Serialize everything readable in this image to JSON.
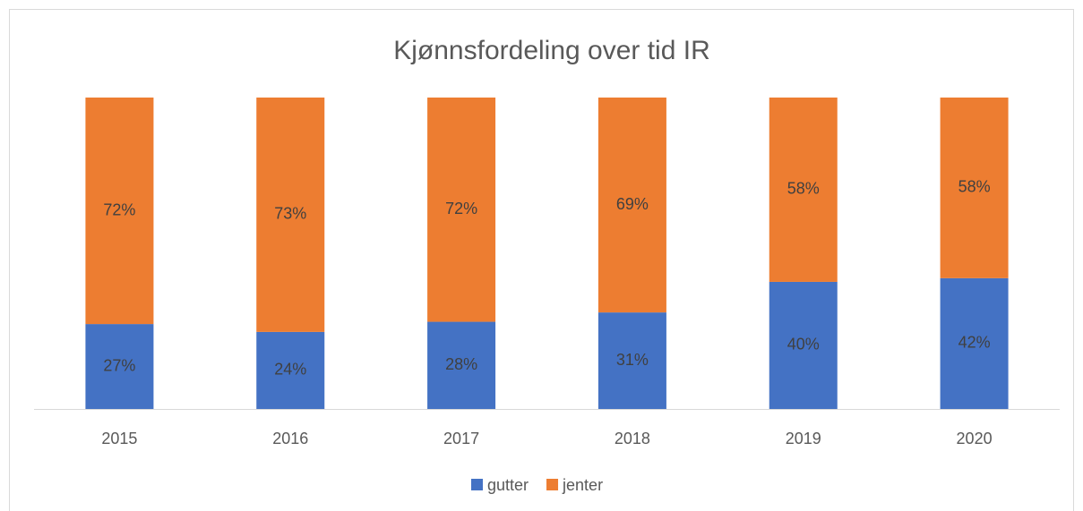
{
  "chart_data": {
    "type": "bar",
    "stacking": "percent",
    "title": "Kjønnsfordeling over tid IR",
    "categories": [
      "2015",
      "2016",
      "2017",
      "2018",
      "2019",
      "2020"
    ],
    "series": [
      {
        "name": "gutter",
        "color": "#4472c4",
        "values": [
          27,
          24,
          28,
          31,
          40,
          42
        ],
        "value_labels": [
          "27%",
          "24%",
          "28%",
          "31%",
          "40%",
          "42%"
        ]
      },
      {
        "name": "jenter",
        "color": "#ed7d31",
        "values": [
          72,
          73,
          72,
          69,
          58,
          58
        ],
        "value_labels": [
          "72%",
          "73%",
          "72%",
          "69%",
          "58%",
          "58%"
        ]
      }
    ],
    "legend": "bottom"
  }
}
